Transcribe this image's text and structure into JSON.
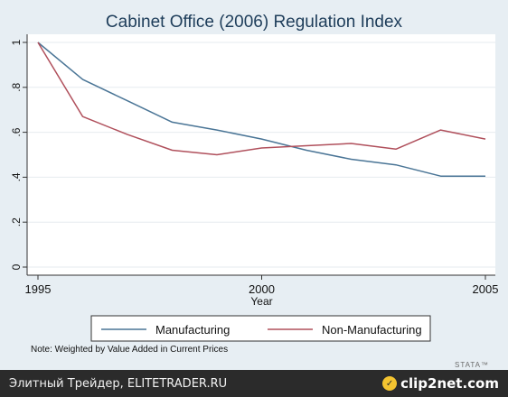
{
  "chart_data": {
    "type": "line",
    "title": "Cabinet Office (2006) Regulation Index",
    "xlabel": "Year",
    "ylabel": "",
    "xlim": [
      1995,
      2005
    ],
    "ylim": [
      0,
      1
    ],
    "x_ticks": [
      1995,
      2000,
      2005
    ],
    "y_ticks": [
      0,
      0.2,
      0.4,
      0.6,
      0.8,
      1
    ],
    "y_tick_labels": [
      "0",
      ".2",
      ".4",
      ".6",
      ".8",
      "1"
    ],
    "grid": true,
    "legend_position": "bottom",
    "x": [
      1995,
      1996,
      1997,
      1998,
      1999,
      2000,
      2001,
      2002,
      2003,
      2004,
      2005
    ],
    "series": [
      {
        "name": "Manufacturing",
        "color": "#4a7596",
        "values": [
          1.0,
          0.835,
          0.74,
          0.645,
          0.61,
          0.57,
          0.52,
          0.48,
          0.455,
          0.405,
          0.405
        ]
      },
      {
        "name": "Non-Manufacturing",
        "color": "#b0505c",
        "values": [
          1.0,
          0.67,
          0.59,
          0.52,
          0.5,
          0.53,
          0.54,
          0.55,
          0.525,
          0.61,
          0.57
        ]
      }
    ],
    "note": "Note: Weighted by Value Added in Current Prices"
  },
  "watermark": "STATA™",
  "footer": {
    "site_text": "Элитный Трейдер, ELITETRADER.RU",
    "logo_text": "clip2net.com"
  }
}
